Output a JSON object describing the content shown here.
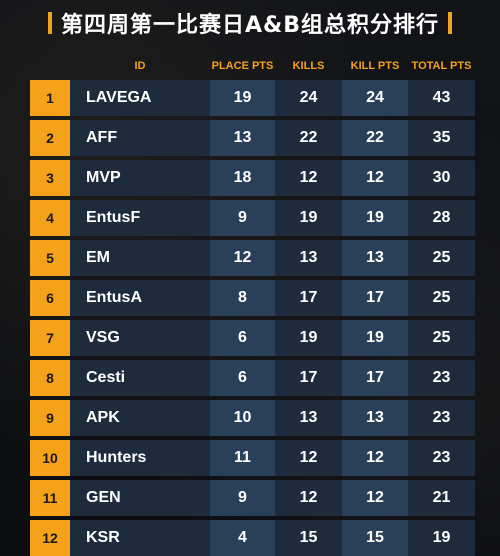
{
  "title": "第四周第一比赛日A&B组总积分排行",
  "columns": {
    "id": "ID",
    "place_pts": "PLACE PTS",
    "kills": "KILLS",
    "kill_pts": "KILL PTS",
    "total_pts": "TOTAL PTS"
  },
  "rows": [
    {
      "rank": "1",
      "team": "LAVEGA",
      "place_pts": "19",
      "kills": "24",
      "kill_pts": "24",
      "total_pts": "43"
    },
    {
      "rank": "2",
      "team": "AFF",
      "place_pts": "13",
      "kills": "22",
      "kill_pts": "22",
      "total_pts": "35"
    },
    {
      "rank": "3",
      "team": "MVP",
      "place_pts": "18",
      "kills": "12",
      "kill_pts": "12",
      "total_pts": "30"
    },
    {
      "rank": "4",
      "team": "EntusF",
      "place_pts": "9",
      "kills": "19",
      "kill_pts": "19",
      "total_pts": "28"
    },
    {
      "rank": "5",
      "team": "EM",
      "place_pts": "12",
      "kills": "13",
      "kill_pts": "13",
      "total_pts": "25"
    },
    {
      "rank": "6",
      "team": "EntusA",
      "place_pts": "8",
      "kills": "17",
      "kill_pts": "17",
      "total_pts": "25"
    },
    {
      "rank": "7",
      "team": "VSG",
      "place_pts": "6",
      "kills": "19",
      "kill_pts": "19",
      "total_pts": "25"
    },
    {
      "rank": "8",
      "team": "Cesti",
      "place_pts": "6",
      "kills": "17",
      "kill_pts": "17",
      "total_pts": "23"
    },
    {
      "rank": "9",
      "team": "APK",
      "place_pts": "10",
      "kills": "13",
      "kill_pts": "13",
      "total_pts": "23"
    },
    {
      "rank": "10",
      "team": "Hunters",
      "place_pts": "11",
      "kills": "12",
      "kill_pts": "12",
      "total_pts": "23"
    },
    {
      "rank": "11",
      "team": "GEN",
      "place_pts": "9",
      "kills": "12",
      "kill_pts": "12",
      "total_pts": "21"
    },
    {
      "rank": "12",
      "team": "KSR",
      "place_pts": "4",
      "kills": "15",
      "kill_pts": "15",
      "total_pts": "19"
    }
  ],
  "colors": {
    "accent": "#f5a21b",
    "row_dark": "#1d2b3d",
    "row_light": "#2a3f58",
    "background": "#0d0f12"
  }
}
